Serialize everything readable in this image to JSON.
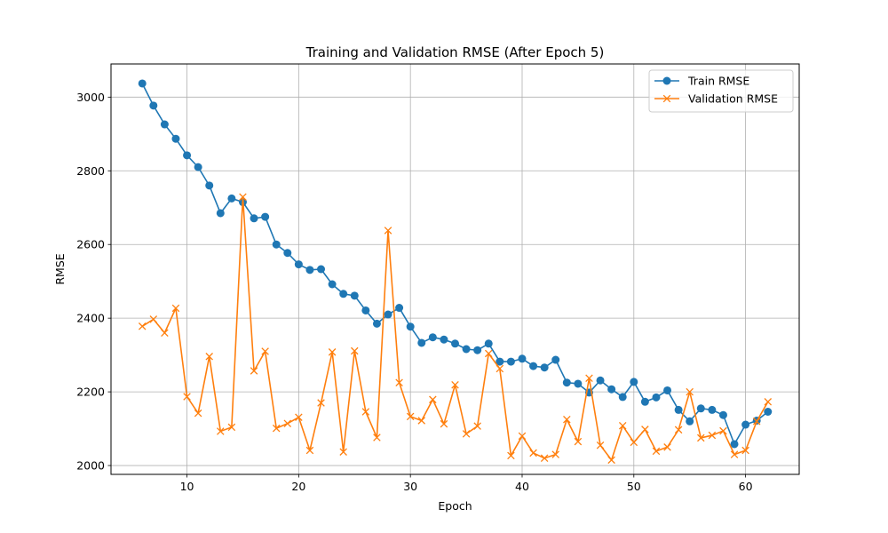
{
  "colors": {
    "train": "#1f77b4",
    "validation": "#ff7f0e",
    "grid": "#b0b0b0"
  },
  "chart_data": {
    "type": "line",
    "title": "Training and Validation RMSE (After Epoch 5)",
    "xlabel": "Epoch",
    "ylabel": "RMSE",
    "xlim": [
      3.2,
      64.8
    ],
    "ylim": [
      1976,
      3090
    ],
    "xticks": [
      10,
      20,
      30,
      40,
      50,
      60
    ],
    "yticks": [
      2000,
      2200,
      2400,
      2600,
      2800,
      3000
    ],
    "grid": true,
    "legend_position": "top-right",
    "x": [
      6,
      7,
      8,
      9,
      10,
      11,
      12,
      13,
      14,
      15,
      16,
      17,
      18,
      19,
      20,
      21,
      22,
      23,
      24,
      25,
      26,
      27,
      28,
      29,
      30,
      31,
      32,
      33,
      34,
      35,
      36,
      37,
      38,
      39,
      40,
      41,
      42,
      43,
      44,
      45,
      46,
      47,
      48,
      49,
      50,
      51,
      52,
      53,
      54,
      55,
      56,
      57,
      58,
      59,
      60,
      61,
      62
    ],
    "series": [
      {
        "name": "Train RMSE",
        "marker": "circle",
        "color": "#1f77b4",
        "values": [
          3037,
          2977,
          2926,
          2887,
          2842,
          2810,
          2760,
          2685,
          2725,
          2715,
          2671,
          2675,
          2600,
          2577,
          2546,
          2531,
          2533,
          2492,
          2466,
          2461,
          2421,
          2385,
          2410,
          2428,
          2377,
          2333,
          2348,
          2342,
          2331,
          2316,
          2313,
          2331,
          2282,
          2282,
          2290,
          2270,
          2266,
          2287,
          2225,
          2222,
          2198,
          2231,
          2207,
          2186,
          2227,
          2173,
          2185,
          2204,
          2151,
          2120,
          2155,
          2151,
          2137,
          2058,
          2111,
          2122,
          2146
        ]
      },
      {
        "name": "Validation RMSE",
        "marker": "x",
        "color": "#ff7f0e",
        "values": [
          2378,
          2397,
          2360,
          2427,
          2187,
          2142,
          2296,
          2093,
          2104,
          2729,
          2257,
          2310,
          2101,
          2114,
          2131,
          2041,
          2170,
          2308,
          2037,
          2311,
          2146,
          2076,
          2638,
          2225,
          2133,
          2122,
          2179,
          2113,
          2219,
          2086,
          2107,
          2304,
          2263,
          2027,
          2080,
          2034,
          2020,
          2030,
          2125,
          2065,
          2237,
          2055,
          2015,
          2108,
          2063,
          2098,
          2039,
          2050,
          2097,
          2200,
          2075,
          2082,
          2094,
          2030,
          2041,
          2120,
          2173
        ]
      }
    ]
  }
}
